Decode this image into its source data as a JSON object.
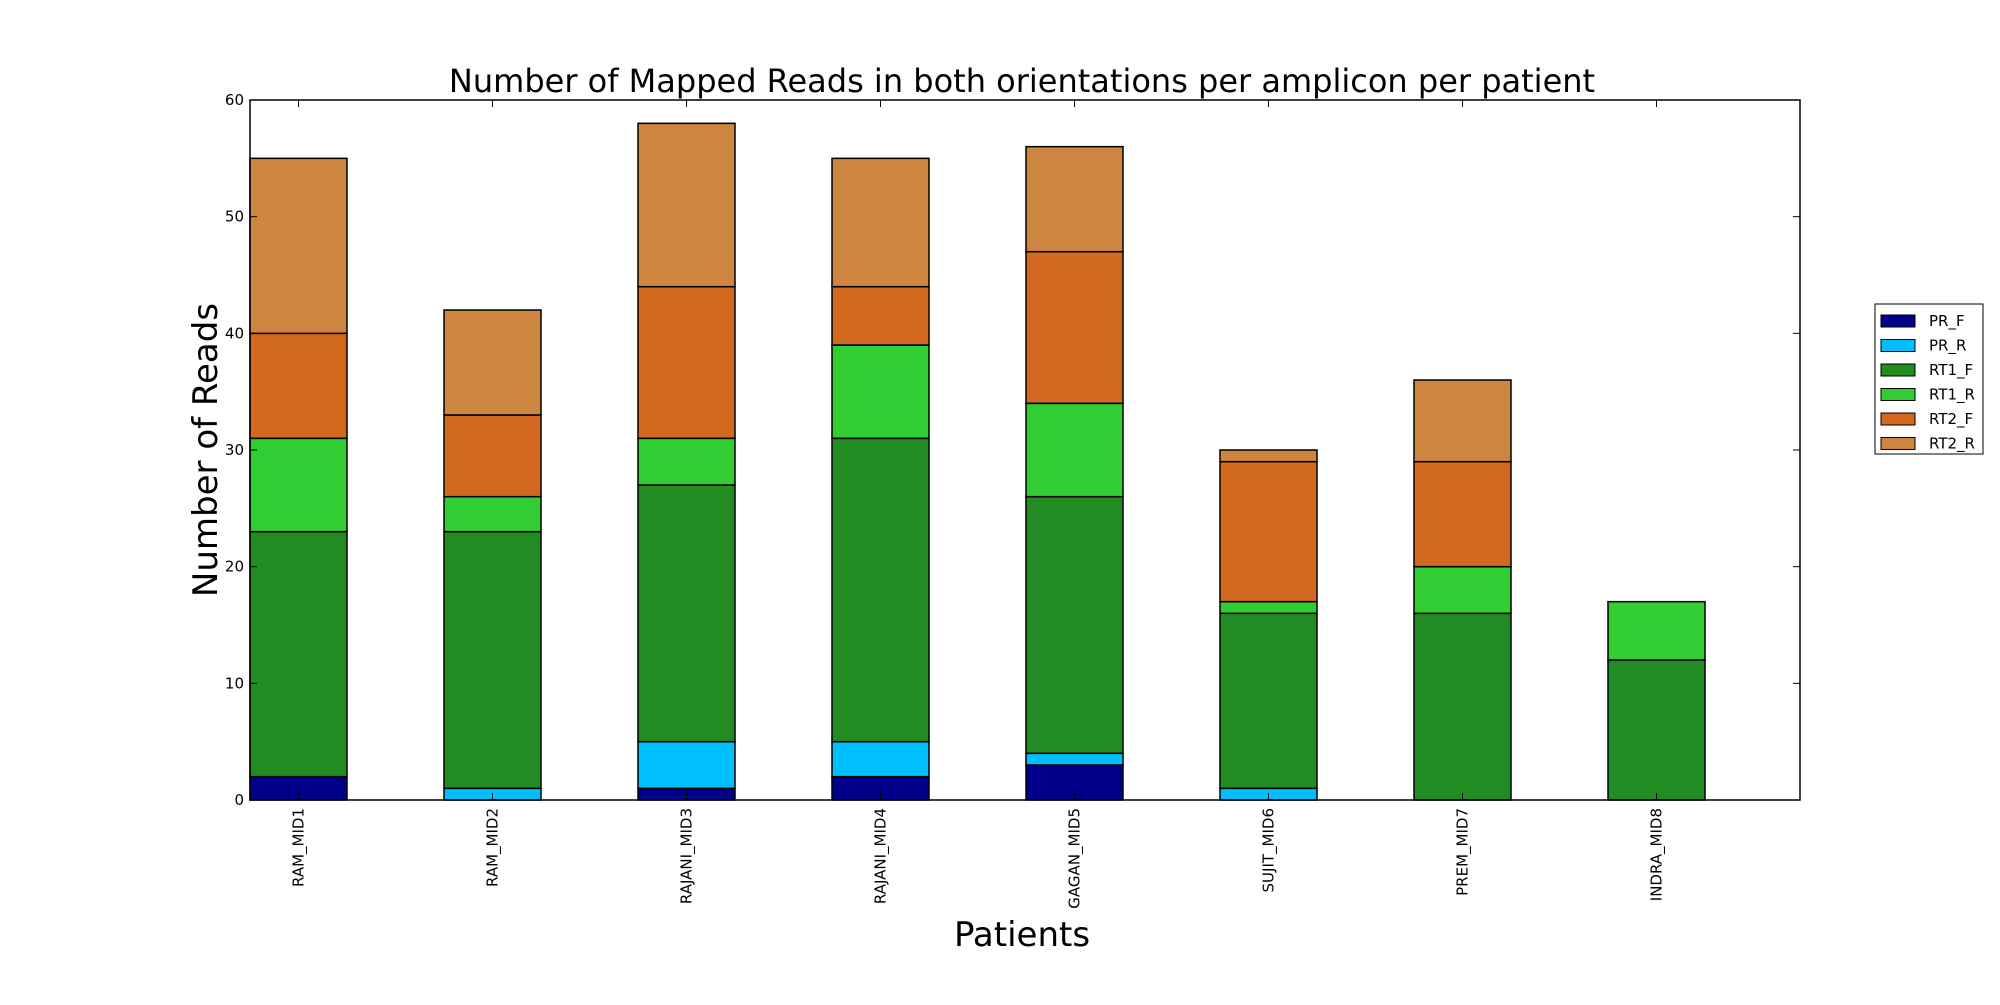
{
  "chart_data": {
    "type": "bar",
    "stacked": true,
    "title": "Number of Mapped Reads in both orientations per amplicon per patient",
    "xlabel": "Patients",
    "ylabel": "Number of Reads",
    "ylim": [
      0,
      60
    ],
    "yticks": [
      0,
      10,
      20,
      30,
      40,
      50,
      60
    ],
    "grid": false,
    "legend_position": "right",
    "categories": [
      "RAM_MID1",
      "RAM_MID2",
      "RAJANI_MID3",
      "RAJANI_MID4",
      "GAGAN_MID5",
      "SUJIT_MID6",
      "PREM_MID7",
      "INDRA_MID8"
    ],
    "series": [
      {
        "name": "PR_F",
        "color": "#00008b",
        "values": [
          2,
          0,
          1,
          2,
          3,
          0,
          0,
          0
        ]
      },
      {
        "name": "PR_R",
        "color": "#00bfff",
        "values": [
          0,
          1,
          4,
          3,
          1,
          1,
          0,
          0
        ]
      },
      {
        "name": "RT1_F",
        "color": "#228b22",
        "values": [
          21,
          22,
          22,
          26,
          22,
          15,
          16,
          12
        ]
      },
      {
        "name": "RT1_R",
        "color": "#32cd32",
        "values": [
          8,
          3,
          4,
          8,
          8,
          1,
          4,
          5
        ]
      },
      {
        "name": "RT2_F",
        "color": "#d2691e",
        "values": [
          9,
          7,
          13,
          5,
          13,
          12,
          9,
          0
        ]
      },
      {
        "name": "RT2_R",
        "color": "#cd853f",
        "values": [
          15,
          9,
          14,
          11,
          9,
          1,
          7,
          0
        ]
      }
    ]
  }
}
